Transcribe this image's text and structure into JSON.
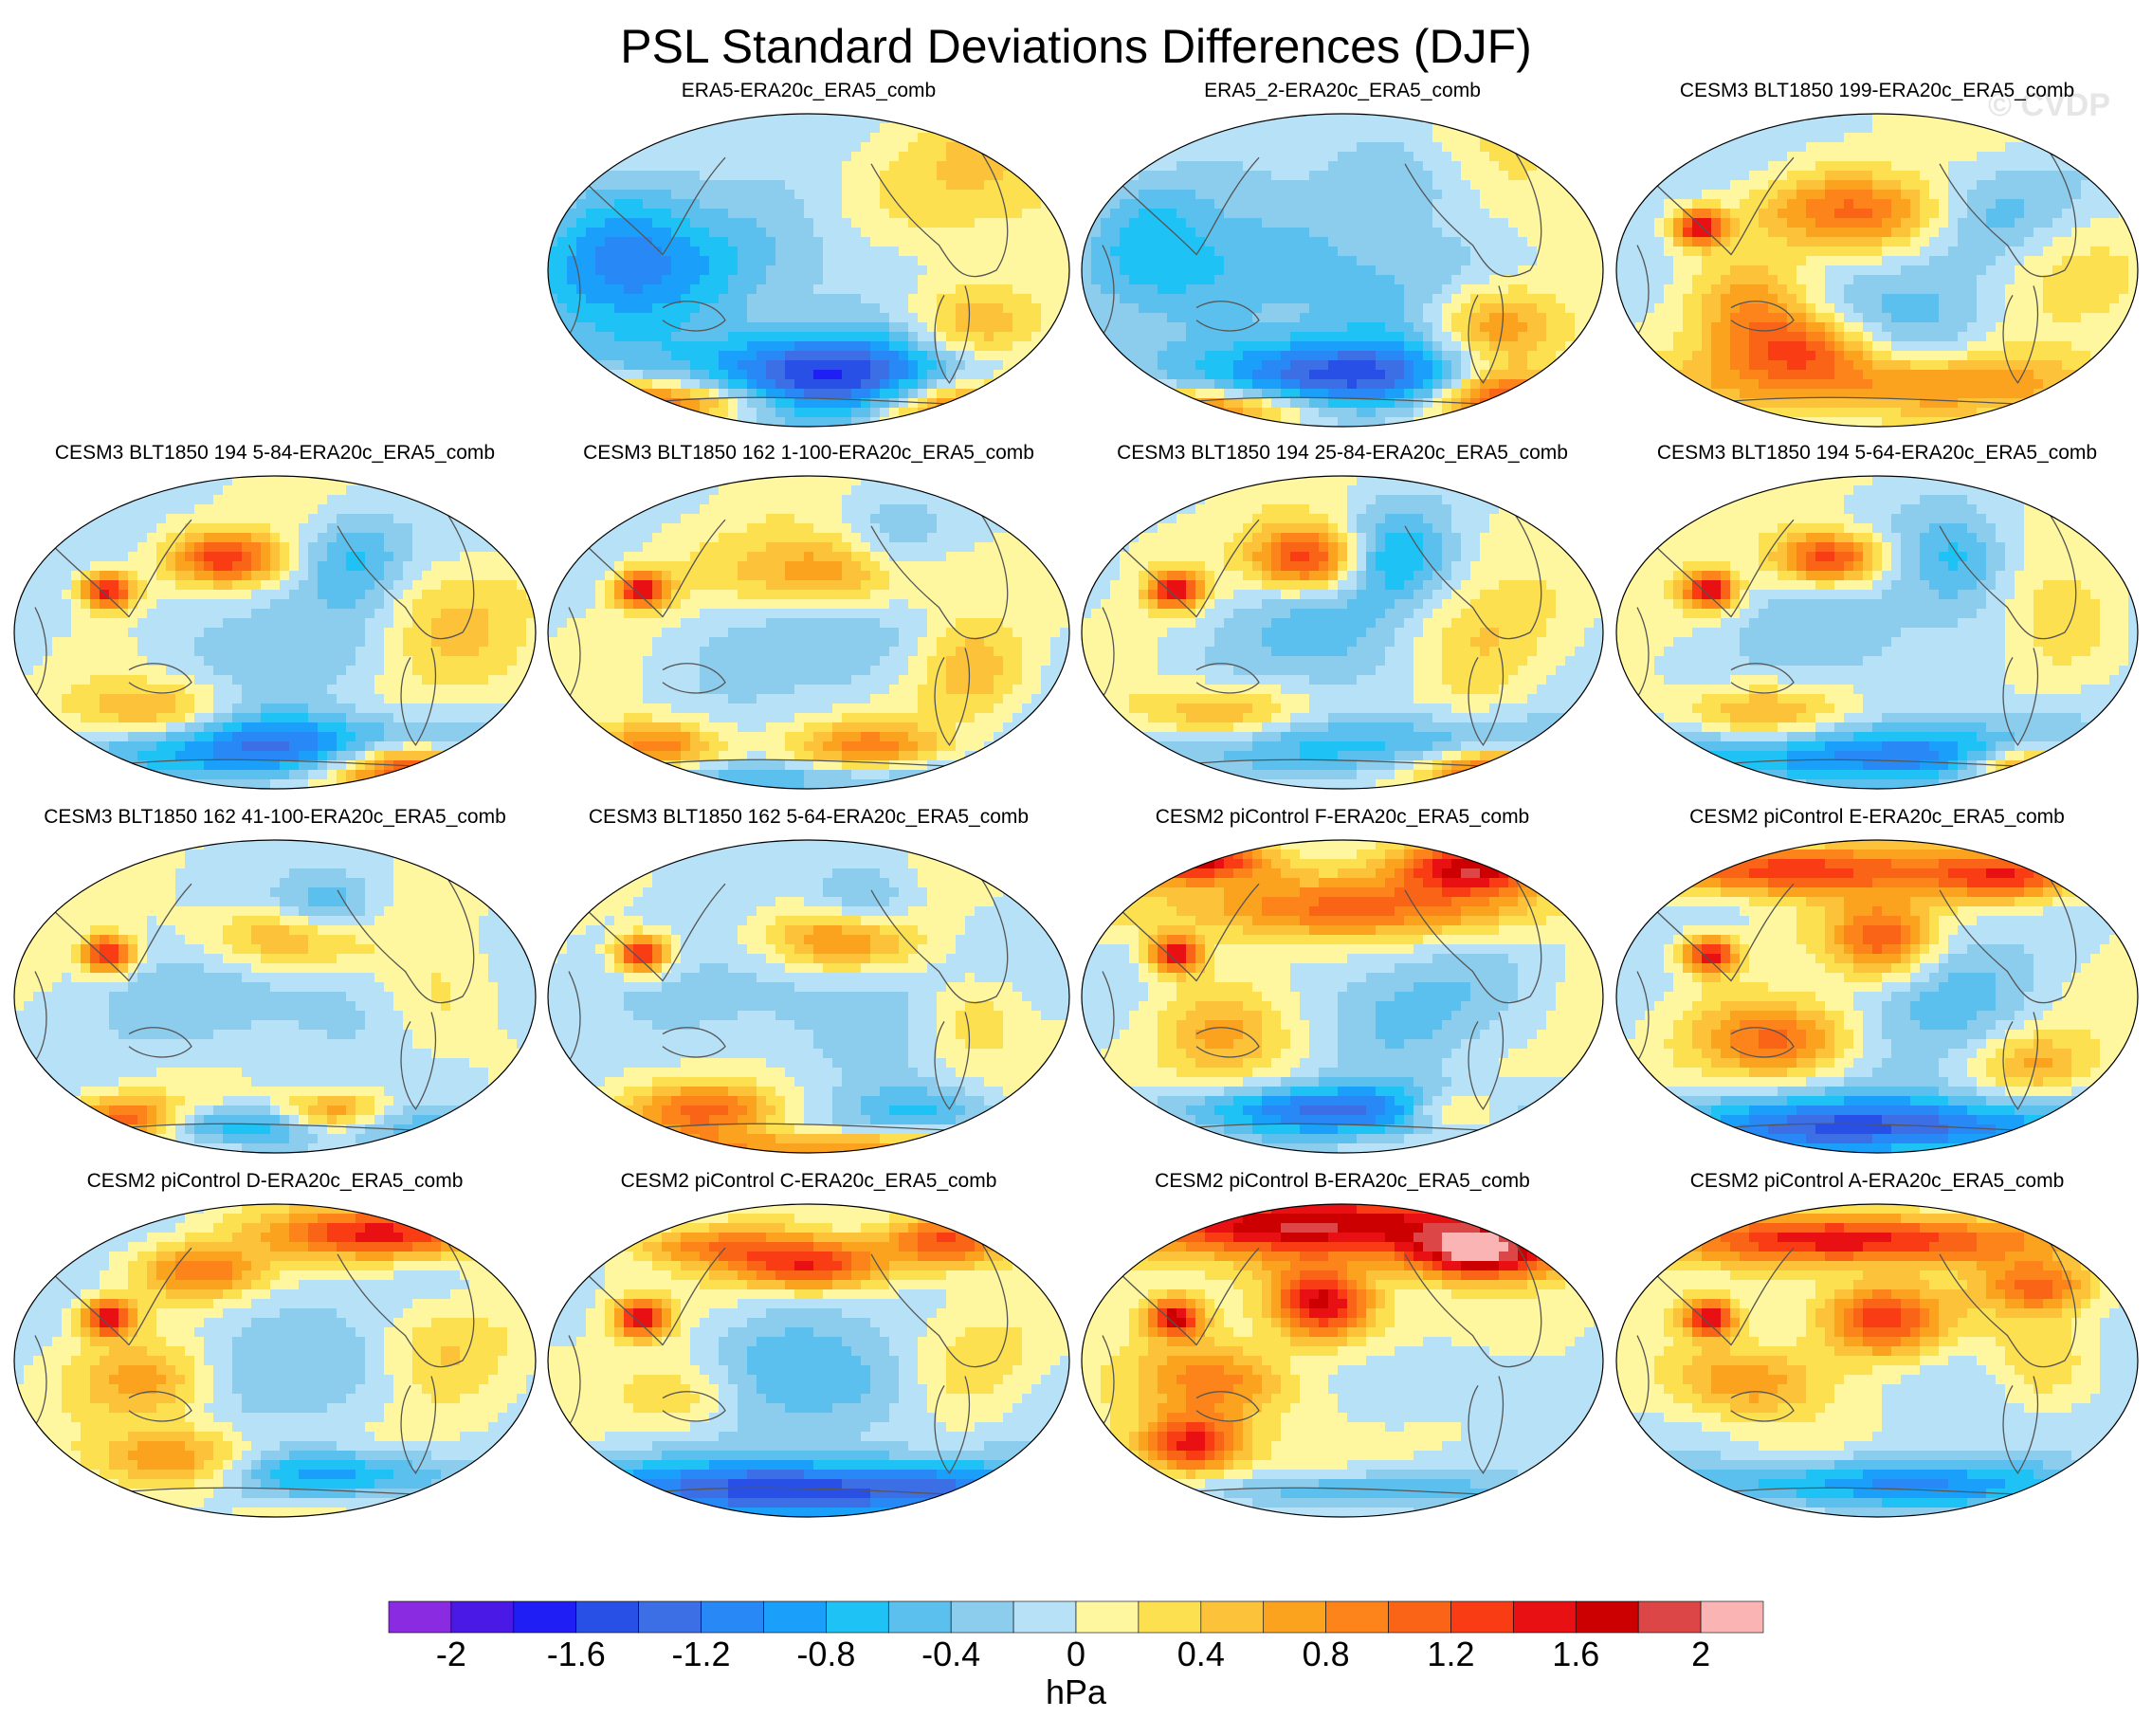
{
  "figure": {
    "title": "PSL Standard Deviations Differences (DJF)",
    "watermark": "© CVDP"
  },
  "panels": [
    {
      "label": "ERA5-ERA20c_ERA5_comb",
      "anoms": [
        [
          0.15,
          0.92,
          1.0,
          0.22,
          0.1
        ],
        [
          0.78,
          0.93,
          1.4,
          0.16,
          0.1
        ],
        [
          0.8,
          0.7,
          0.9,
          0.14,
          0.16
        ],
        [
          0.22,
          0.48,
          -0.6,
          0.4,
          0.2
        ],
        [
          0.55,
          0.82,
          -1.6,
          0.35,
          0.14
        ],
        [
          0.85,
          0.2,
          0.4,
          0.2,
          0.25
        ],
        [
          0.12,
          0.4,
          -0.5,
          0.15,
          0.3
        ],
        [
          0.25,
          0.9,
          0.4,
          0.2,
          0.05
        ]
      ]
    },
    {
      "label": "ERA5_2-ERA20c_ERA5_comb",
      "anoms": [
        [
          0.25,
          0.93,
          1.2,
          0.25,
          0.07
        ],
        [
          0.8,
          0.9,
          1.6,
          0.14,
          0.1
        ],
        [
          0.78,
          0.68,
          0.9,
          0.13,
          0.14
        ],
        [
          0.38,
          0.5,
          -0.6,
          0.35,
          0.22
        ],
        [
          0.5,
          0.83,
          -1.4,
          0.35,
          0.13
        ],
        [
          0.6,
          0.2,
          -0.4,
          0.15,
          0.15
        ],
        [
          0.12,
          0.35,
          -0.4,
          0.12,
          0.2
        ],
        [
          0.85,
          0.25,
          0.3,
          0.15,
          0.25
        ]
      ]
    },
    {
      "label": "CESM3 BLT1850 199-ERA20c_ERA5_comb",
      "anoms": [
        [
          0.35,
          0.73,
          1.0,
          0.14,
          0.1
        ],
        [
          0.45,
          0.3,
          1.0,
          0.2,
          0.12
        ],
        [
          0.15,
          0.35,
          1.6,
          0.05,
          0.06
        ],
        [
          0.7,
          0.3,
          -0.6,
          0.15,
          0.15
        ],
        [
          0.5,
          0.85,
          0.9,
          0.4,
          0.1
        ],
        [
          0.5,
          0.6,
          -0.4,
          0.3,
          0.2
        ],
        [
          0.25,
          0.6,
          0.8,
          0.12,
          0.15
        ],
        [
          0.8,
          0.5,
          0.4,
          0.15,
          0.2
        ]
      ]
    },
    {
      "label": "CESM3 BLT1850 194 5-84-ERA20c_ERA5_comb",
      "anoms": [
        [
          0.75,
          0.92,
          1.6,
          0.14,
          0.08
        ],
        [
          0.4,
          0.25,
          1.3,
          0.1,
          0.08
        ],
        [
          0.17,
          0.35,
          1.6,
          0.05,
          0.06
        ],
        [
          0.5,
          0.85,
          -1.2,
          0.4,
          0.1
        ],
        [
          0.5,
          0.5,
          -0.3,
          0.3,
          0.2
        ],
        [
          0.25,
          0.75,
          0.8,
          0.15,
          0.1
        ],
        [
          0.65,
          0.25,
          -0.6,
          0.1,
          0.15
        ],
        [
          0.8,
          0.45,
          0.5,
          0.15,
          0.2
        ]
      ]
    },
    {
      "label": "CESM3 BLT1850 162 1-100-ERA20c_ERA5_comb",
      "anoms": [
        [
          0.55,
          0.3,
          1.0,
          0.2,
          0.12
        ],
        [
          0.17,
          0.35,
          1.6,
          0.05,
          0.06
        ],
        [
          0.2,
          0.85,
          1.0,
          0.12,
          0.08
        ],
        [
          0.6,
          0.85,
          0.8,
          0.15,
          0.08
        ],
        [
          0.5,
          0.5,
          -0.3,
          0.3,
          0.2
        ],
        [
          0.65,
          0.25,
          -0.5,
          0.1,
          0.15
        ],
        [
          0.8,
          0.6,
          0.5,
          0.1,
          0.15
        ],
        [
          0.5,
          0.95,
          -0.6,
          0.4,
          0.06
        ]
      ]
    },
    {
      "label": "CESM3 BLT1850 194 25-84-ERA20c_ERA5_comb",
      "anoms": [
        [
          0.78,
          0.93,
          1.6,
          0.14,
          0.08
        ],
        [
          0.42,
          0.25,
          1.4,
          0.1,
          0.1
        ],
        [
          0.17,
          0.35,
          1.6,
          0.05,
          0.06
        ],
        [
          0.6,
          0.25,
          -0.7,
          0.1,
          0.15
        ],
        [
          0.5,
          0.5,
          -0.4,
          0.3,
          0.2
        ],
        [
          0.5,
          0.85,
          -0.8,
          0.4,
          0.1
        ],
        [
          0.25,
          0.75,
          0.9,
          0.15,
          0.1
        ],
        [
          0.75,
          0.5,
          0.5,
          0.15,
          0.2
        ]
      ]
    },
    {
      "label": "CESM3 BLT1850 194 5-64-ERA20c_ERA5_comb",
      "anoms": [
        [
          0.8,
          0.92,
          1.6,
          0.14,
          0.08
        ],
        [
          0.4,
          0.25,
          1.4,
          0.1,
          0.08
        ],
        [
          0.17,
          0.35,
          1.6,
          0.05,
          0.06
        ],
        [
          0.5,
          0.88,
          -1.2,
          0.45,
          0.1
        ],
        [
          0.5,
          0.5,
          -0.3,
          0.3,
          0.2
        ],
        [
          0.25,
          0.75,
          0.8,
          0.15,
          0.1
        ],
        [
          0.65,
          0.25,
          -0.6,
          0.1,
          0.15
        ],
        [
          0.85,
          0.5,
          0.4,
          0.12,
          0.2
        ]
      ]
    },
    {
      "label": "CESM3 BLT1850 162 41-100-ERA20c_ERA5_comb",
      "anoms": [
        [
          0.2,
          0.88,
          1.4,
          0.1,
          0.07
        ],
        [
          0.6,
          0.87,
          1.2,
          0.1,
          0.07
        ],
        [
          0.17,
          0.35,
          1.6,
          0.05,
          0.06
        ],
        [
          0.5,
          0.9,
          -0.8,
          0.4,
          0.06
        ],
        [
          0.5,
          0.5,
          -0.4,
          0.3,
          0.2
        ],
        [
          0.5,
          0.3,
          0.8,
          0.15,
          0.1
        ],
        [
          0.8,
          0.5,
          0.4,
          0.12,
          0.2
        ],
        [
          0.6,
          0.2,
          -0.6,
          0.1,
          0.1
        ]
      ]
    },
    {
      "label": "CESM3 BLT1850 162 5-64-ERA20c_ERA5_comb",
      "anoms": [
        [
          0.55,
          0.3,
          1.0,
          0.15,
          0.1
        ],
        [
          0.17,
          0.35,
          1.6,
          0.05,
          0.06
        ],
        [
          0.3,
          0.85,
          1.0,
          0.15,
          0.08
        ],
        [
          0.5,
          0.97,
          0.9,
          0.35,
          0.05
        ],
        [
          0.5,
          0.5,
          -0.4,
          0.3,
          0.2
        ],
        [
          0.7,
          0.85,
          -0.6,
          0.15,
          0.08
        ],
        [
          0.8,
          0.55,
          0.5,
          0.1,
          0.15
        ],
        [
          0.6,
          0.2,
          -0.6,
          0.1,
          0.12
        ]
      ]
    },
    {
      "label": "CESM2 piControl F-ERA20c_ERA5_comb",
      "anoms": [
        [
          0.2,
          0.05,
          1.8,
          0.15,
          0.07
        ],
        [
          0.75,
          0.07,
          1.6,
          0.15,
          0.08
        ],
        [
          0.5,
          0.2,
          1.0,
          0.4,
          0.1
        ],
        [
          0.17,
          0.35,
          1.6,
          0.05,
          0.06
        ],
        [
          0.5,
          0.85,
          -1.2,
          0.35,
          0.08
        ],
        [
          0.6,
          0.5,
          -0.4,
          0.2,
          0.2
        ],
        [
          0.25,
          0.6,
          0.6,
          0.12,
          0.15
        ],
        [
          0.7,
          0.85,
          1.0,
          0.1,
          0.06
        ]
      ]
    },
    {
      "label": "CESM2 piControl E-ERA20c_ERA5_comb",
      "anoms": [
        [
          0.3,
          0.08,
          1.4,
          0.3,
          0.08
        ],
        [
          0.75,
          0.1,
          1.3,
          0.15,
          0.08
        ],
        [
          0.5,
          0.3,
          1.2,
          0.1,
          0.12
        ],
        [
          0.3,
          0.62,
          1.0,
          0.15,
          0.12
        ],
        [
          0.5,
          0.9,
          -1.4,
          0.45,
          0.1
        ],
        [
          0.6,
          0.5,
          -0.4,
          0.2,
          0.2
        ],
        [
          0.17,
          0.35,
          1.6,
          0.05,
          0.06
        ],
        [
          0.8,
          0.7,
          0.6,
          0.1,
          0.1
        ]
      ]
    },
    {
      "label": "CESM2 piControl D-ERA20c_ERA5_comb",
      "anoms": [
        [
          0.7,
          0.08,
          1.6,
          0.2,
          0.08
        ],
        [
          0.35,
          0.2,
          0.9,
          0.12,
          0.08
        ],
        [
          0.17,
          0.35,
          1.6,
          0.05,
          0.06
        ],
        [
          0.3,
          0.8,
          0.9,
          0.15,
          0.1
        ],
        [
          0.6,
          0.85,
          -1.0,
          0.2,
          0.08
        ],
        [
          0.5,
          0.5,
          -0.3,
          0.3,
          0.2
        ],
        [
          0.25,
          0.55,
          0.8,
          0.12,
          0.12
        ],
        [
          0.8,
          0.45,
          0.4,
          0.12,
          0.15
        ]
      ]
    },
    {
      "label": "CESM2 piControl C-ERA20c_ERA5_comb",
      "anoms": [
        [
          0.5,
          0.18,
          1.4,
          0.15,
          0.08
        ],
        [
          0.75,
          0.1,
          1.3,
          0.12,
          0.08
        ],
        [
          0.17,
          0.35,
          1.6,
          0.05,
          0.06
        ],
        [
          0.5,
          0.9,
          -1.6,
          0.45,
          0.1
        ],
        [
          0.5,
          0.55,
          -0.5,
          0.3,
          0.2
        ],
        [
          0.25,
          0.6,
          0.6,
          0.12,
          0.12
        ],
        [
          0.8,
          0.5,
          0.4,
          0.12,
          0.15
        ],
        [
          0.3,
          0.12,
          0.8,
          0.15,
          0.06
        ]
      ]
    },
    {
      "label": "CESM2 piControl B-ERA20c_ERA5_comb",
      "anoms": [
        [
          0.5,
          0.05,
          1.8,
          0.5,
          0.1
        ],
        [
          0.45,
          0.3,
          1.8,
          0.1,
          0.12
        ],
        [
          0.75,
          0.15,
          1.6,
          0.15,
          0.08
        ],
        [
          0.2,
          0.75,
          1.6,
          0.1,
          0.1
        ],
        [
          0.17,
          0.35,
          1.6,
          0.05,
          0.06
        ],
        [
          0.25,
          0.55,
          1.0,
          0.15,
          0.12
        ],
        [
          0.6,
          0.55,
          -0.2,
          0.2,
          0.15
        ],
        [
          0.5,
          0.9,
          -0.6,
          0.3,
          0.06
        ]
      ]
    },
    {
      "label": "CESM2 piControl A-ERA20c_ERA5_comb",
      "anoms": [
        [
          0.45,
          0.1,
          1.6,
          0.35,
          0.08
        ],
        [
          0.5,
          0.35,
          1.4,
          0.12,
          0.12
        ],
        [
          0.8,
          0.25,
          1.0,
          0.1,
          0.08
        ],
        [
          0.17,
          0.35,
          1.6,
          0.05,
          0.06
        ],
        [
          0.25,
          0.55,
          0.9,
          0.15,
          0.12
        ],
        [
          0.5,
          0.88,
          -1.0,
          0.4,
          0.08
        ],
        [
          0.6,
          0.55,
          -0.3,
          0.2,
          0.15
        ],
        [
          0.8,
          0.5,
          0.5,
          0.1,
          0.15
        ]
      ]
    }
  ],
  "colorbar": {
    "levels": [
      -2.2,
      -2.0,
      -1.8,
      -1.6,
      -1.4,
      -1.2,
      -1.0,
      -0.8,
      -0.6,
      -0.4,
      -0.2,
      0.0,
      0.2,
      0.4,
      0.6,
      0.8,
      1.0,
      1.2,
      1.4,
      1.6,
      1.8,
      2.0,
      2.2
    ],
    "colors": [
      "#8a2be2",
      "#4b19e6",
      "#1e1ef5",
      "#2850e6",
      "#3c6ee6",
      "#2888f5",
      "#1aa0fa",
      "#1ec2f5",
      "#5cc0ee",
      "#8ccdee",
      "#b6e1f6",
      "#fef7a0",
      "#fde050",
      "#fcc23a",
      "#fba21e",
      "#fc841a",
      "#fa6416",
      "#fa3c14",
      "#e81012",
      "#cc0000",
      "#dc4646",
      "#fab4b4"
    ],
    "tick_labels": [
      "-2",
      "-1.6",
      "-1.2",
      "-0.8",
      "-0.4",
      "0",
      "0.4",
      "0.8",
      "1.2",
      "1.6",
      "2"
    ],
    "tick_values": [
      -2.0,
      -1.6,
      -1.2,
      -0.8,
      -0.4,
      0.0,
      0.4,
      0.8,
      1.2,
      1.6,
      2.0
    ],
    "units": "hPa"
  }
}
